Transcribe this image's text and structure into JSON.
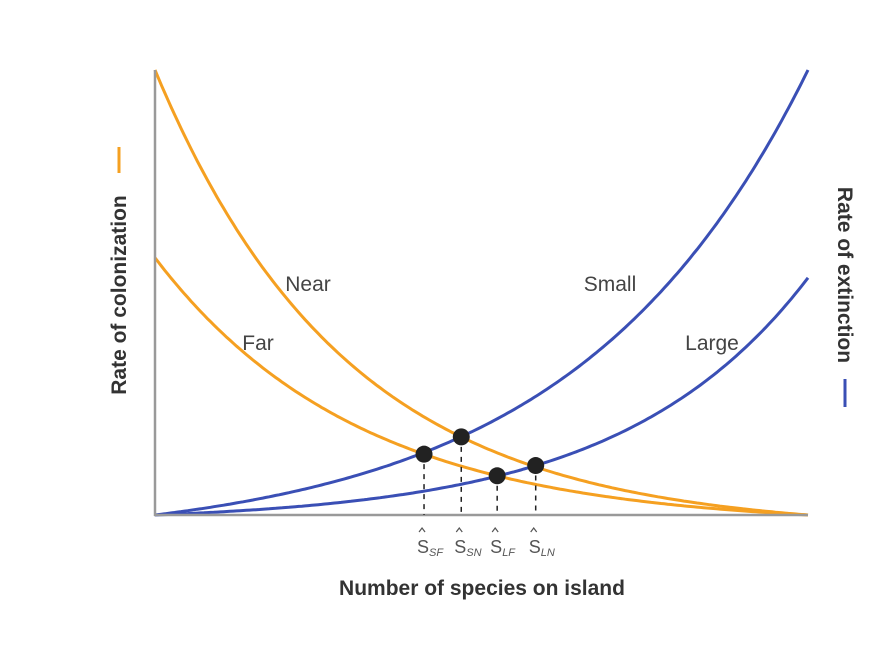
{
  "chart_data": {
    "type": "line",
    "title": "",
    "xlabel": "Number of species on island",
    "ylabel_left": "Rate of colonization",
    "ylabel_right": "Rate of extinction",
    "xlim": [
      0,
      1
    ],
    "ylim": [
      0,
      1
    ],
    "grid": false,
    "colors": {
      "colonization": "#f5a021",
      "extinction": "#3a4fb5",
      "axis": "#999999",
      "point": "#222222"
    },
    "series": [
      {
        "name": "Near",
        "kind": "colonization",
        "start": 1.0,
        "end": 0.0,
        "curvature": 3.4,
        "direction": "decreasing"
      },
      {
        "name": "Far",
        "kind": "colonization",
        "start": 0.578,
        "end": 0.0,
        "curvature": 3.2,
        "direction": "decreasing"
      },
      {
        "name": "Small",
        "kind": "extinction",
        "start": 0.0,
        "end": 1.0,
        "curvature": 2.8,
        "direction": "increasing"
      },
      {
        "name": "Large",
        "kind": "extinction",
        "start": 0.0,
        "end": 0.533,
        "curvature": 3.5,
        "direction": "increasing"
      }
    ],
    "equilibria": [
      {
        "label": "S",
        "sub": "SF",
        "x": 0.412,
        "curve": "Far"
      },
      {
        "label": "S",
        "sub": "SN",
        "x": 0.469,
        "curve": "Near"
      },
      {
        "label": "S",
        "sub": "LF",
        "x": 0.524,
        "curve": "Far"
      },
      {
        "label": "S",
        "sub": "LN",
        "x": 0.583,
        "curve": "Large"
      }
    ]
  }
}
